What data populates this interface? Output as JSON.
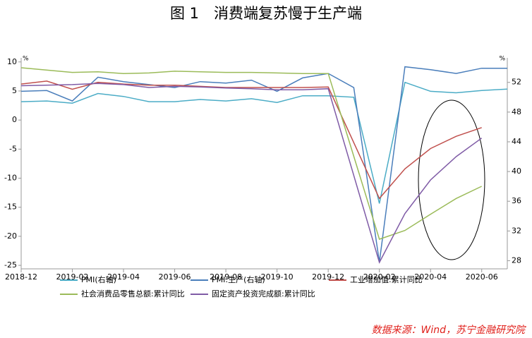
{
  "chart_data": {
    "type": "line",
    "title": "图 1　消费端复苏慢于生产端",
    "source": "数据来源：Wind，苏宁金融研究院",
    "y_unit": "%",
    "y2_unit": "%",
    "xlim": [
      "2018-12",
      "2020-07"
    ],
    "xticks": [
      "2018-12",
      "2019-02",
      "2019-04",
      "2019-06",
      "2019-08",
      "2019-10",
      "2019-12",
      "2020-02",
      "2020-04",
      "2020-06"
    ],
    "ylim": [
      -25.6,
      10.7
    ],
    "yticks": [
      10,
      5,
      0,
      -5,
      -10,
      -15,
      -20,
      -25
    ],
    "y2lim": [
      26.9,
      55.3
    ],
    "y2ticks": [
      52,
      48,
      44,
      40,
      36,
      32,
      28
    ],
    "series": [
      {
        "name": "PMI(右轴)",
        "color": "#4bacc6",
        "axis": "y2",
        "x": [
          "2018-12",
          "2019-01",
          "2019-02",
          "2019-03",
          "2019-04",
          "2019-05",
          "2019-06",
          "2019-07",
          "2019-08",
          "2019-09",
          "2019-10",
          "2019-11",
          "2019-12",
          "2020-01",
          "2020-02",
          "2020-03",
          "2020-04",
          "2020-05",
          "2020-06",
          "2020-07"
        ],
        "values": [
          49.4,
          49.5,
          49.2,
          50.5,
          50.1,
          49.4,
          49.4,
          49.7,
          49.5,
          49.8,
          49.3,
          50.2,
          50.2,
          50.0,
          35.7,
          52.0,
          50.8,
          50.6,
          50.9,
          51.1
        ]
      },
      {
        "name": "PMI:生产(右轴)",
        "color": "#4a7ebb",
        "axis": "y2",
        "x": [
          "2018-12",
          "2019-01",
          "2019-02",
          "2019-03",
          "2019-04",
          "2019-05",
          "2019-06",
          "2019-07",
          "2019-08",
          "2019-09",
          "2019-10",
          "2019-11",
          "2019-12",
          "2020-01",
          "2020-02",
          "2020-03",
          "2020-04",
          "2020-05",
          "2020-06",
          "2020-07"
        ],
        "values": [
          50.8,
          50.9,
          49.5,
          52.7,
          52.1,
          51.7,
          51.3,
          52.1,
          51.9,
          52.3,
          50.8,
          52.6,
          53.2,
          51.3,
          27.8,
          54.1,
          53.7,
          53.2,
          53.9,
          53.9
        ]
      },
      {
        "name": "工业增加值:累计同比",
        "color": "#c0504d",
        "x": [
          "2018-12",
          "2019-01",
          "2019-02",
          "2019-03",
          "2019-04",
          "2019-05",
          "2019-06",
          "2019-07",
          "2019-08",
          "2019-09",
          "2019-10",
          "2019-11",
          "2019-12",
          "2020-02",
          "2020-03",
          "2020-04",
          "2020-05",
          "2020-06"
        ],
        "values": [
          6.2,
          6.7,
          5.3,
          6.5,
          6.2,
          6.0,
          6.0,
          5.8,
          5.6,
          5.6,
          5.6,
          5.6,
          5.7,
          -13.5,
          -8.4,
          -4.9,
          -2.8,
          -1.3
        ]
      },
      {
        "name": "社会消费品零售总额:累计同比",
        "color": "#9bbb59",
        "x": [
          "2018-12",
          "2019-02",
          "2019-03",
          "2019-04",
          "2019-05",
          "2019-06",
          "2019-07",
          "2019-08",
          "2019-09",
          "2019-10",
          "2019-11",
          "2019-12",
          "2020-02",
          "2020-03",
          "2020-04",
          "2020-05",
          "2020-06"
        ],
        "values": [
          9.0,
          8.2,
          8.3,
          8.0,
          8.1,
          8.4,
          8.3,
          8.2,
          8.2,
          8.1,
          8.0,
          8.0,
          -20.5,
          -19.0,
          -16.2,
          -13.5,
          -11.4
        ]
      },
      {
        "name": "固定资产投资完成额:累计同比",
        "color": "#7f5ba6",
        "x": [
          "2018-12",
          "2019-02",
          "2019-03",
          "2019-04",
          "2019-05",
          "2019-06",
          "2019-07",
          "2019-08",
          "2019-09",
          "2019-10",
          "2019-11",
          "2019-12",
          "2020-02",
          "2020-03",
          "2020-04",
          "2020-05",
          "2020-06"
        ],
        "values": [
          5.9,
          6.1,
          6.3,
          6.1,
          5.6,
          5.8,
          5.7,
          5.5,
          5.4,
          5.2,
          5.2,
          5.4,
          -24.5,
          -16.1,
          -10.3,
          -6.3,
          -3.1
        ]
      }
    ]
  }
}
